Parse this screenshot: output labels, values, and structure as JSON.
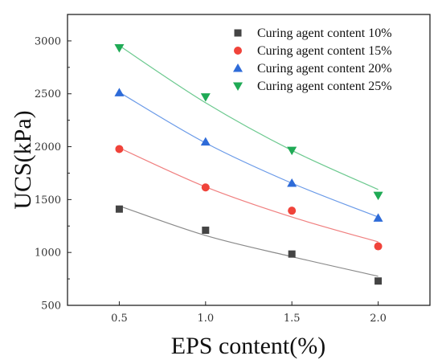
{
  "chart_data": {
    "type": "scatter",
    "xlabel": "EPS content(%)",
    "ylabel": "UCS(kPa)",
    "x": [
      0.5,
      1.0,
      1.5,
      2.0
    ],
    "x_ticks": [
      "0.5",
      "1.0",
      "1.5",
      "2.0"
    ],
    "xlim": [
      0.2,
      2.3
    ],
    "ylim": [
      500,
      3250
    ],
    "y_ticks": [
      500,
      1000,
      1500,
      2000,
      2500,
      3000
    ],
    "grid": false,
    "legend_position": "top-right",
    "series": [
      {
        "name": "Curing agent content 10%",
        "marker": "square",
        "marker_color": "#444444",
        "line_color": "#8a8a8a",
        "values": [
          1410,
          1210,
          985,
          730
        ],
        "fit": [
          1440,
          1160,
          960,
          775
        ]
      },
      {
        "name": "Curing agent content 15%",
        "marker": "circle",
        "marker_color": "#f0433a",
        "line_color": "#f08080",
        "values": [
          1978,
          1615,
          1395,
          1058
        ],
        "fit": [
          1988,
          1620,
          1335,
          1100
        ]
      },
      {
        "name": "Curing agent content 20%",
        "marker": "triangle-up",
        "marker_color": "#2e6bd8",
        "line_color": "#6a9ae8",
        "values": [
          2510,
          2045,
          1655,
          1325
        ],
        "fit": [
          2515,
          2035,
          1655,
          1335
        ]
      },
      {
        "name": "Curing agent content 25%",
        "marker": "triangle-down",
        "marker_color": "#1faa55",
        "line_color": "#6cc98f",
        "values": [
          2935,
          2470,
          1965,
          1540
        ],
        "fit": [
          2955,
          2415,
          1965,
          1595
        ]
      }
    ]
  }
}
